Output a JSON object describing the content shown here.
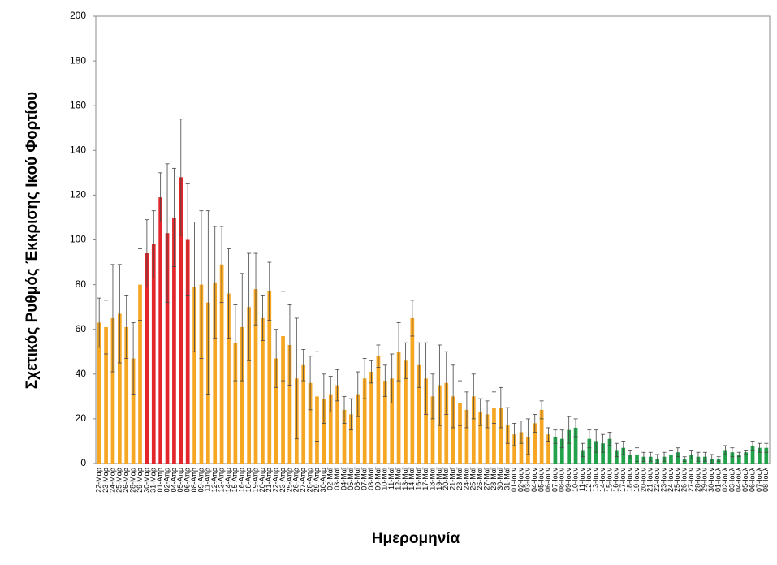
{
  "chart_data": {
    "type": "bar",
    "y_label": "Σχετικός Ρυθμός Έκκρισης Ικού Φορτίου",
    "x_label": "Ημερομηνία",
    "categories": [
      "22-Μαρ",
      "23-Μαρ",
      "24-Μαρ",
      "25-Μαρ",
      "26-Μαρ",
      "28-Μαρ",
      "29-Μαρ",
      "30-Μαρ",
      "31-Μαρ",
      "01-Απρ",
      "02-Απρ",
      "04-Απρ",
      "05-Απρ",
      "06-Απρ",
      "08-Απρ",
      "09-Απρ",
      "11-Απρ",
      "12-Απρ",
      "13-Απρ",
      "14-Απρ",
      "15-Απρ",
      "16-Απρ",
      "18-Απρ",
      "19-Απρ",
      "20-Απρ",
      "21-Απρ",
      "22-Απρ",
      "23-Απρ",
      "25-Απρ",
      "26-Απρ",
      "27-Απρ",
      "28-Απρ",
      "29-Απρ",
      "30-Απρ",
      "02-Μαϊ",
      "03-Μαϊ",
      "04-Μαϊ",
      "05-Μαϊ",
      "06-Μαϊ",
      "07-Μαϊ",
      "08-Μαϊ",
      "09-Μαϊ",
      "10-Μαϊ",
      "11-Μαϊ",
      "12-Μαϊ",
      "13-Μαϊ",
      "14-Μαϊ",
      "16-Μαϊ",
      "17-Μαϊ",
      "18-Μαϊ",
      "19-Μαϊ",
      "20-Μαϊ",
      "21-Μαϊ",
      "23-Μαϊ",
      "24-Μαϊ",
      "25-Μαϊ",
      "26-Μαϊ",
      "27-Μαϊ",
      "28-Μαϊ",
      "30-Μαϊ",
      "31-Μαϊ",
      "01-Ιουν",
      "02-Ιουν",
      "03-Ιουν",
      "04-Ιουν",
      "05-Ιουν",
      "06-Ιουν",
      "07-Ιουν",
      "08-Ιουν",
      "09-Ιουν",
      "10-Ιουν",
      "11-Ιουν",
      "12-Ιουν",
      "13-Ιουν",
      "14-Ιουν",
      "15-Ιουν",
      "16-Ιουν",
      "17-Ιουν",
      "18-Ιουν",
      "19-Ιουν",
      "20-Ιουν",
      "21-Ιουν",
      "22-Ιουν",
      "23-Ιουν",
      "24-Ιουν",
      "25-Ιουν",
      "26-Ιουν",
      "27-Ιουν",
      "28-Ιουν",
      "29-Ιουν",
      "30-Ιουν",
      "01-Ιουλ",
      "02-Ιουλ",
      "03-Ιουλ",
      "04-Ιουλ",
      "05-Ιουλ",
      "06-Ιουλ",
      "07-Ιουλ",
      "08-Ιουλ"
    ],
    "values": [
      63,
      61,
      65,
      67,
      61,
      47,
      80,
      94,
      98,
      119,
      103,
      110,
      128,
      100,
      79,
      80,
      72,
      81,
      89,
      76,
      54,
      61,
      70,
      78,
      65,
      77,
      47,
      57,
      53,
      38,
      44,
      36,
      30,
      29,
      31,
      35,
      24,
      22,
      31,
      38,
      41,
      48,
      37,
      38,
      50,
      46,
      65,
      44,
      38,
      30,
      35,
      36,
      30,
      27,
      24,
      30,
      23,
      22,
      25,
      25,
      17,
      13,
      14,
      12,
      18,
      24,
      13,
      12,
      11,
      15,
      16,
      6,
      11,
      10,
      9,
      11,
      6,
      7,
      4,
      4,
      3,
      3,
      2,
      3,
      4,
      5,
      2,
      4,
      3,
      3,
      2,
      2,
      6,
      5,
      4,
      5,
      8,
      7,
      7
    ],
    "errors": [
      11,
      12,
      24,
      22,
      14,
      16,
      16,
      15,
      15,
      11,
      31,
      22,
      26,
      25,
      29,
      33,
      41,
      25,
      17,
      20,
      17,
      24,
      24,
      16,
      10,
      13,
      13,
      20,
      18,
      27,
      7,
      12,
      20,
      11,
      8,
      7,
      6,
      7,
      10,
      9,
      5,
      5,
      7,
      11,
      13,
      8,
      8,
      10,
      16,
      10,
      18,
      14,
      14,
      10,
      8,
      10,
      6,
      6,
      7,
      9,
      8,
      5,
      5,
      8,
      4,
      4,
      3,
      3,
      4,
      6,
      4,
      3,
      4,
      5,
      4,
      3,
      3,
      3,
      2,
      3,
      2,
      2,
      2,
      2,
      2,
      2,
      1,
      2,
      2,
      2,
      2,
      1,
      2,
      2,
      1,
      1,
      2,
      2,
      2
    ],
    "colors": [
      "#f5a623",
      "#f5a623",
      "#f5a623",
      "#f5a623",
      "#f5a623",
      "#f5a623",
      "#f5a623",
      "#e3262b",
      "#e3262b",
      "#e3262b",
      "#e3262b",
      "#e3262b",
      "#e3262b",
      "#e3262b",
      "#f5a623",
      "#f5a623",
      "#f5a623",
      "#f5a623",
      "#f5a623",
      "#f5a623",
      "#f5a623",
      "#f5a623",
      "#f5a623",
      "#f5a623",
      "#f5a623",
      "#f5a623",
      "#f5a623",
      "#f5a623",
      "#f5a623",
      "#f5a623",
      "#f5a623",
      "#f5a623",
      "#f5a623",
      "#f5a623",
      "#f5a623",
      "#f5a623",
      "#f5a623",
      "#f5a623",
      "#f5a623",
      "#f5a623",
      "#f5a623",
      "#f5a623",
      "#f5a623",
      "#f5a623",
      "#f5a623",
      "#f5a623",
      "#f5a623",
      "#f5a623",
      "#f5a623",
      "#f5a623",
      "#f5a623",
      "#f5a623",
      "#f5a623",
      "#f5a623",
      "#f5a623",
      "#f5a623",
      "#f5a623",
      "#f5a623",
      "#f5a623",
      "#f5a623",
      "#f5a623",
      "#f5a623",
      "#f5a623",
      "#f5a623",
      "#f5a623",
      "#f5a623",
      "#f5a623",
      "#22a24a",
      "#22a24a",
      "#22a24a",
      "#22a24a",
      "#22a24a",
      "#22a24a",
      "#22a24a",
      "#22a24a",
      "#22a24a",
      "#22a24a",
      "#22a24a",
      "#22a24a",
      "#22a24a",
      "#22a24a",
      "#22a24a",
      "#22a24a",
      "#22a24a",
      "#22a24a",
      "#22a24a",
      "#22a24a",
      "#22a24a",
      "#22a24a",
      "#22a24a",
      "#22a24a",
      "#22a24a",
      "#22a24a",
      "#22a24a",
      "#22a24a",
      "#22a24a",
      "#22a24a",
      "#22a24a",
      "#22a24a"
    ],
    "ylim": [
      0,
      200
    ],
    "yticks": [
      0,
      20,
      40,
      60,
      80,
      100,
      120,
      140,
      160,
      180,
      200
    ],
    "grid": false
  }
}
